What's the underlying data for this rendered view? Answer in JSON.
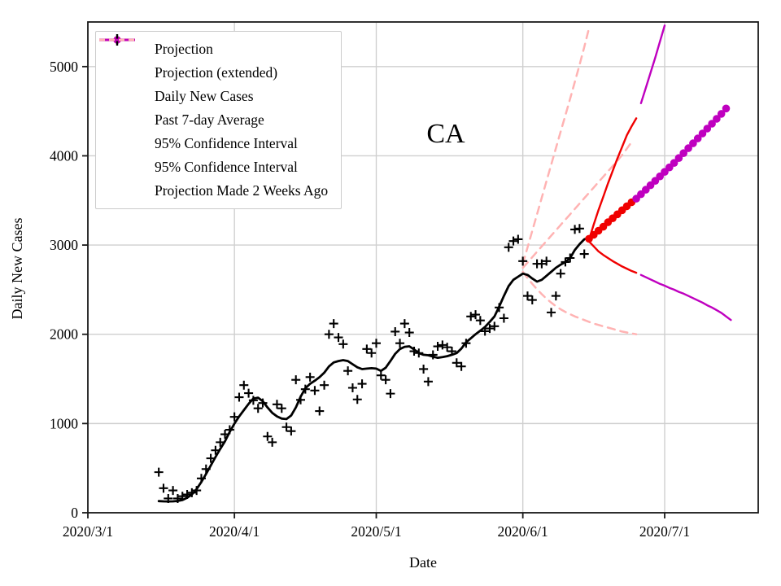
{
  "figure": {
    "kind": "matplotlib-style projection chart",
    "state_annotation": "CA"
  },
  "chart_data": {
    "type": "line",
    "title": "CA",
    "xlabel": "Date",
    "ylabel": "Daily New Cases",
    "x_tick_labels": [
      "2020/3/1",
      "2020/4/1",
      "2020/5/1",
      "2020/6/1",
      "2020/7/1"
    ],
    "y_tick_labels": [
      "0",
      "1000",
      "2000",
      "3000",
      "4000",
      "5000"
    ],
    "y_ticks": [
      0,
      1000,
      2000,
      3000,
      4000,
      5000
    ],
    "ylim": [
      0,
      5500
    ],
    "xlim_dates": [
      "2020/3/1",
      "2020/7/21"
    ],
    "grid": true,
    "legend_position": "upper left",
    "colors": {
      "projection_red": "#f00000",
      "projection_magenta": "#bf00bf",
      "old_projection_pink": "#ffb3b3",
      "data_black": "#000000",
      "grid_gray": "#cfcfcf"
    },
    "legend": [
      {
        "label": "Projection",
        "marker": "dot",
        "color": "#f00000"
      },
      {
        "label": "Projection (extended)",
        "marker": "dot",
        "color": "#bf00bf"
      },
      {
        "label": "Daily New Cases",
        "marker": "plus",
        "color": "#000000"
      },
      {
        "label": "Past 7-day Average",
        "marker": "line",
        "color": "#000000"
      },
      {
        "label": "95% Confidence Interval",
        "marker": "line",
        "color": "#f00000"
      },
      {
        "label": "95% Confidence Interval",
        "marker": "line",
        "color": "#bf00bf"
      },
      {
        "label": "Projection Made 2 Weeks Ago",
        "marker": "dashed",
        "color": "#ffb3b3"
      }
    ],
    "series": {
      "daily_new_cases": {
        "name": "Daily New Cases",
        "style": "scatter-plus",
        "color": "#000000",
        "points": [
          [
            "3/16",
            455
          ],
          [
            "3/17",
            275
          ],
          [
            "3/18",
            160
          ],
          [
            "3/19",
            250
          ],
          [
            "3/20",
            160
          ],
          [
            "3/21",
            185
          ],
          [
            "3/22",
            205
          ],
          [
            "3/23",
            225
          ],
          [
            "3/24",
            250
          ],
          [
            "3/25",
            385
          ],
          [
            "3/26",
            490
          ],
          [
            "3/27",
            610
          ],
          [
            "3/28",
            700
          ],
          [
            "3/29",
            790
          ],
          [
            "3/30",
            880
          ],
          [
            "3/31",
            930
          ],
          [
            "4/1",
            1075
          ],
          [
            "4/2",
            1295
          ],
          [
            "4/3",
            1430
          ],
          [
            "4/4",
            1340
          ],
          [
            "4/5",
            1260
          ],
          [
            "4/6",
            1170
          ],
          [
            "4/7",
            1230
          ],
          [
            "4/8",
            855
          ],
          [
            "4/9",
            790
          ],
          [
            "4/10",
            1215
          ],
          [
            "4/11",
            1170
          ],
          [
            "4/12",
            960
          ],
          [
            "4/13",
            915
          ],
          [
            "4/14",
            1490
          ],
          [
            "4/15",
            1265
          ],
          [
            "4/16",
            1385
          ],
          [
            "4/17",
            1520
          ],
          [
            "4/18",
            1370
          ],
          [
            "4/19",
            1140
          ],
          [
            "4/20",
            1430
          ],
          [
            "4/21",
            2000
          ],
          [
            "4/22",
            2120
          ],
          [
            "4/23",
            1965
          ],
          [
            "4/24",
            1890
          ],
          [
            "4/25",
            1590
          ],
          [
            "4/26",
            1400
          ],
          [
            "4/27",
            1270
          ],
          [
            "4/28",
            1445
          ],
          [
            "4/29",
            1835
          ],
          [
            "4/30",
            1790
          ],
          [
            "5/1",
            1900
          ],
          [
            "5/2",
            1540
          ],
          [
            "5/3",
            1490
          ],
          [
            "5/4",
            1335
          ],
          [
            "5/5",
            2030
          ],
          [
            "5/6",
            1900
          ],
          [
            "5/7",
            2120
          ],
          [
            "5/8",
            2020
          ],
          [
            "5/9",
            1810
          ],
          [
            "5/10",
            1790
          ],
          [
            "5/11",
            1610
          ],
          [
            "5/12",
            1470
          ],
          [
            "5/13",
            1770
          ],
          [
            "5/14",
            1865
          ],
          [
            "5/15",
            1880
          ],
          [
            "5/16",
            1855
          ],
          [
            "5/17",
            1810
          ],
          [
            "5/18",
            1680
          ],
          [
            "5/19",
            1640
          ],
          [
            "5/20",
            1900
          ],
          [
            "5/21",
            2200
          ],
          [
            "5/22",
            2220
          ],
          [
            "5/23",
            2155
          ],
          [
            "5/24",
            2035
          ],
          [
            "5/25",
            2065
          ],
          [
            "5/26",
            2090
          ],
          [
            "5/27",
            2300
          ],
          [
            "5/28",
            2180
          ],
          [
            "5/29",
            2975
          ],
          [
            "5/30",
            3045
          ],
          [
            "5/31",
            3065
          ],
          [
            "6/1",
            2820
          ],
          [
            "6/2",
            2430
          ],
          [
            "6/3",
            2385
          ],
          [
            "6/4",
            2790
          ],
          [
            "6/5",
            2790
          ],
          [
            "6/6",
            2820
          ],
          [
            "6/7",
            2245
          ],
          [
            "6/8",
            2430
          ],
          [
            "6/9",
            2680
          ],
          [
            "6/10",
            2810
          ],
          [
            "6/11",
            2855
          ],
          [
            "6/12",
            3175
          ],
          [
            "6/13",
            3185
          ],
          [
            "6/14",
            2900
          ]
        ]
      },
      "past_7day_average": {
        "name": "Past 7-day Average",
        "style": "line",
        "color": "#000000",
        "start": "3/16",
        "daily_values": [
          130,
          128,
          127,
          128,
          132,
          142,
          168,
          205,
          265,
          345,
          435,
          530,
          625,
          715,
          800,
          905,
          1000,
          1080,
          1150,
          1220,
          1280,
          1290,
          1250,
          1180,
          1120,
          1080,
          1055,
          1050,
          1090,
          1180,
          1300,
          1395,
          1445,
          1480,
          1520,
          1570,
          1640,
          1685,
          1700,
          1710,
          1700,
          1665,
          1630,
          1610,
          1615,
          1620,
          1615,
          1590,
          1625,
          1700,
          1780,
          1835,
          1860,
          1865,
          1830,
          1790,
          1770,
          1765,
          1750,
          1737,
          1745,
          1755,
          1770,
          1790,
          1840,
          1910,
          1955,
          2000,
          2040,
          2082,
          2140,
          2200,
          2310,
          2430,
          2540,
          2610,
          2645,
          2680,
          2665,
          2625,
          2590,
          2610,
          2655,
          2700,
          2745,
          2780,
          2810,
          2855,
          2945,
          3010,
          3065,
          3085
        ]
      },
      "projection": {
        "name": "Projection",
        "style": "dots",
        "color": "#f00000",
        "start": "6/15",
        "daily_values": [
          3070,
          3115,
          3160,
          3205,
          3255,
          3300,
          3345,
          3390,
          3435,
          3480
        ]
      },
      "projection_extended": {
        "name": "Projection (extended)",
        "style": "dots",
        "color": "#bf00bf",
        "start": "6/25",
        "daily_values": [
          3520,
          3570,
          3620,
          3670,
          3720,
          3770,
          3820,
          3870,
          3920,
          3975,
          4030,
          4085,
          4140,
          4195,
          4250,
          4305,
          4360,
          4415,
          4470,
          4530
        ]
      },
      "ci_upper_red": {
        "name": "95% Confidence Interval (upper)",
        "style": "line",
        "color": "#f00000",
        "start": "6/15",
        "daily_values": [
          3060,
          3230,
          3390,
          3540,
          3690,
          3830,
          3970,
          4100,
          4230,
          4330,
          4420
        ]
      },
      "ci_upper_magenta": {
        "name": "95% Confidence Interval (upper, extended)",
        "style": "line",
        "color": "#bf00bf",
        "start": "6/26",
        "daily_values": [
          4590,
          4760,
          4930,
          5100,
          5280,
          5460
        ]
      },
      "ci_lower_red": {
        "name": "95% Confidence Interval (lower)",
        "style": "line",
        "color": "#f00000",
        "start": "6/15",
        "daily_values": [
          3040,
          2985,
          2930,
          2890,
          2855,
          2820,
          2790,
          2760,
          2735,
          2710,
          2690
        ]
      },
      "ci_lower_magenta": {
        "name": "95% Confidence Interval (lower, extended)",
        "style": "line",
        "color": "#bf00bf",
        "start": "6/26",
        "daily_values": [
          2665,
          2640,
          2615,
          2590,
          2565,
          2545,
          2520,
          2500,
          2475,
          2455,
          2430,
          2405,
          2380,
          2355,
          2325,
          2300,
          2270,
          2240,
          2200,
          2160
        ]
      },
      "old_projection_center": {
        "name": "Projection Made 2 Weeks Ago (center)",
        "style": "dashed",
        "color": "#ffb3b3",
        "start": "6/1",
        "daily_values": [
          2745,
          2805,
          2865,
          2925,
          2985,
          3045,
          3105,
          3165,
          3225,
          3285,
          3345,
          3405,
          3465,
          3525,
          3585,
          3645,
          3705,
          3765,
          3825,
          3885,
          3945,
          4010,
          4080,
          4155
        ]
      },
      "old_projection_upper": {
        "name": "Projection Made 2 Weeks Ago (upper CI)",
        "style": "dashed",
        "color": "#ffb3b3",
        "start": "6/1",
        "daily_values": [
          2790,
          2975,
          3160,
          3345,
          3530,
          3715,
          3900,
          4085,
          4270,
          4455,
          4640,
          4830,
          5020,
          5220,
          5430
        ]
      },
      "old_projection_lower": {
        "name": "Projection Made 2 Weeks Ago (lower CI)",
        "style": "dashed",
        "color": "#ffb3b3",
        "start": "6/1",
        "daily_values": [
          2700,
          2630,
          2565,
          2505,
          2450,
          2400,
          2355,
          2315,
          2280,
          2250,
          2225,
          2200,
          2180,
          2160,
          2140,
          2120,
          2105,
          2090,
          2075,
          2060,
          2045,
          2030,
          2020,
          2010,
          2000
        ]
      }
    }
  }
}
